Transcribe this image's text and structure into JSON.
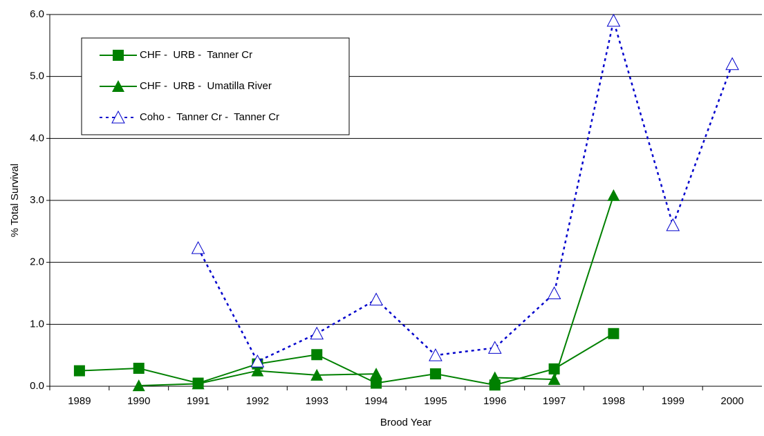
{
  "chart_data": {
    "type": "line",
    "x_label": "Brood Year",
    "y_label": "% Total Survival",
    "categories": [
      "1989",
      "1990",
      "1991",
      "1992",
      "1993",
      "1994",
      "1995",
      "1996",
      "1997",
      "1998",
      "1999",
      "2000"
    ],
    "series": [
      {
        "name": "CHF -  URB -  Tanner Cr",
        "color": "#008000",
        "marker": "square",
        "dash": false,
        "values": [
          0.25,
          0.29,
          0.05,
          0.36,
          0.51,
          0.05,
          0.2,
          0.02,
          0.28,
          0.85,
          null,
          null
        ]
      },
      {
        "name": "CHF -  URB -  Umatilla River",
        "color": "#008000",
        "marker": "triangle",
        "dash": false,
        "values": [
          null,
          0.01,
          0.04,
          0.25,
          0.18,
          0.2,
          null,
          0.14,
          0.11,
          3.08,
          null,
          null
        ]
      },
      {
        "name": "Coho -  Tanner Cr -  Tanner Cr",
        "color": "#0000cc",
        "marker": "open-triangle",
        "dash": true,
        "values": [
          null,
          null,
          2.23,
          0.4,
          0.85,
          1.4,
          0.5,
          0.62,
          1.5,
          5.9,
          2.6,
          5.2
        ]
      }
    ],
    "ylim": [
      0,
      6
    ],
    "yticks": [
      {
        "value": 0,
        "label": "0.0"
      },
      {
        "value": 1,
        "label": "1.0"
      },
      {
        "value": 2,
        "label": "2.0"
      },
      {
        "value": 3,
        "label": "3.0"
      },
      {
        "value": 4,
        "label": "4.0"
      },
      {
        "value": 5,
        "label": "5.0"
      },
      {
        "value": 6,
        "label": "6.0"
      }
    ],
    "grid": true,
    "legend": "upper left"
  }
}
